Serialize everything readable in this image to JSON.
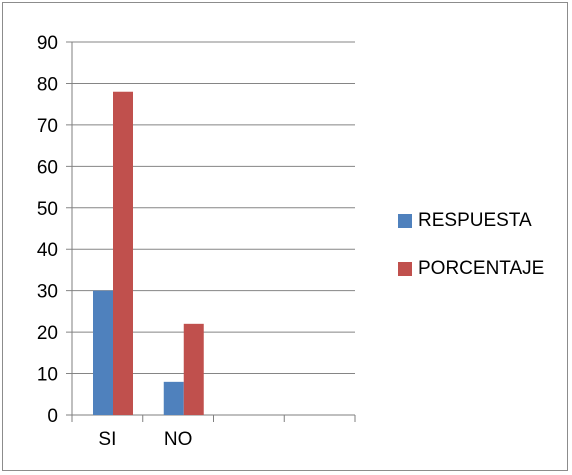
{
  "chart_data": {
    "type": "bar",
    "categories": [
      "SI",
      "NO",
      "",
      ""
    ],
    "series": [
      {
        "name": "RESPUESTA",
        "color": "#4F81BD",
        "values": [
          30,
          8,
          null,
          null
        ]
      },
      {
        "name": "PORCENTAJE",
        "color": "#C0504D",
        "values": [
          78,
          22,
          null,
          null
        ]
      }
    ],
    "y_ticks": [
      0,
      10,
      20,
      30,
      40,
      50,
      60,
      70,
      80,
      90
    ],
    "ylim": [
      0,
      90
    ],
    "grid": "horizontal",
    "legend_position": "right"
  }
}
